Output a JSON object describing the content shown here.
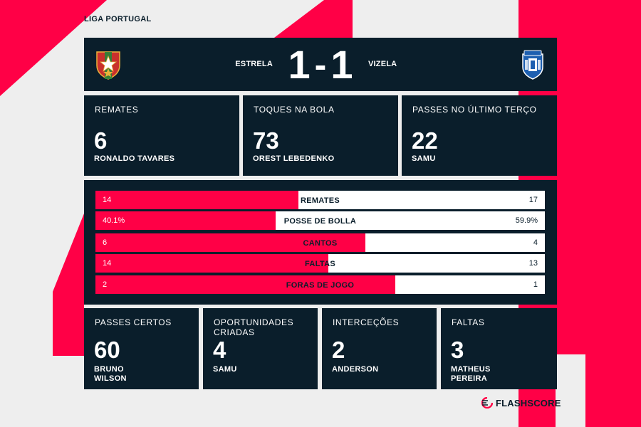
{
  "league": "LIGA PORTUGAL",
  "match": {
    "home_team": "ESTRELA",
    "away_team": "VIZELA",
    "home_score": "1",
    "separator": "-",
    "away_score": "1"
  },
  "top_leaders": [
    {
      "label": "REMATES",
      "value": "6",
      "player": "RONALDO TAVARES"
    },
    {
      "label": "TOQUES NA BOLA",
      "value": "73",
      "player": "OREST LEBEDENKO"
    },
    {
      "label": "PASSES NO ÚLTIMO TERÇO",
      "value": "22",
      "player": "SAMU"
    }
  ],
  "team_stats": [
    {
      "name": "REMATES",
      "home": "14",
      "away": "17",
      "home_share": 0.452
    },
    {
      "name": "POSSE DE BOLLA",
      "home": "40.1%",
      "away": "59.9%",
      "home_share": 0.401
    },
    {
      "name": "CANTOS",
      "home": "6",
      "away": "4",
      "home_share": 0.6
    },
    {
      "name": "FALTAS",
      "home": "14",
      "away": "13",
      "home_share": 0.519
    },
    {
      "name": "FORAS DE JOGO",
      "home": "2",
      "away": "1",
      "home_share": 0.667
    }
  ],
  "bottom_leaders": [
    {
      "label": [
        "PASSES CERTOS"
      ],
      "value": "60",
      "player": [
        "BRUNO",
        "WILSON"
      ]
    },
    {
      "label": [
        "OPORTUNIDADES",
        "CRIADAS"
      ],
      "value": "4",
      "player": [
        "SAMU"
      ]
    },
    {
      "label": [
        "INTERCEÇÕES"
      ],
      "value": "2",
      "player": [
        "ANDERSON"
      ]
    },
    {
      "label": [
        "FALTAS"
      ],
      "value": "3",
      "player": [
        "MATHEUS",
        "PEREIRA"
      ]
    }
  ],
  "brand": "FLASHSCORE",
  "icons": {
    "home_crest": "estrela-crest-icon",
    "away_crest": "vizela-crest-icon",
    "brand_logo": "flashscore-logo-icon"
  },
  "colors": {
    "navy": "#0a1e2b",
    "accent_red": "#ff0046",
    "background": "#eeeeee",
    "bar_white": "#ffffff"
  }
}
